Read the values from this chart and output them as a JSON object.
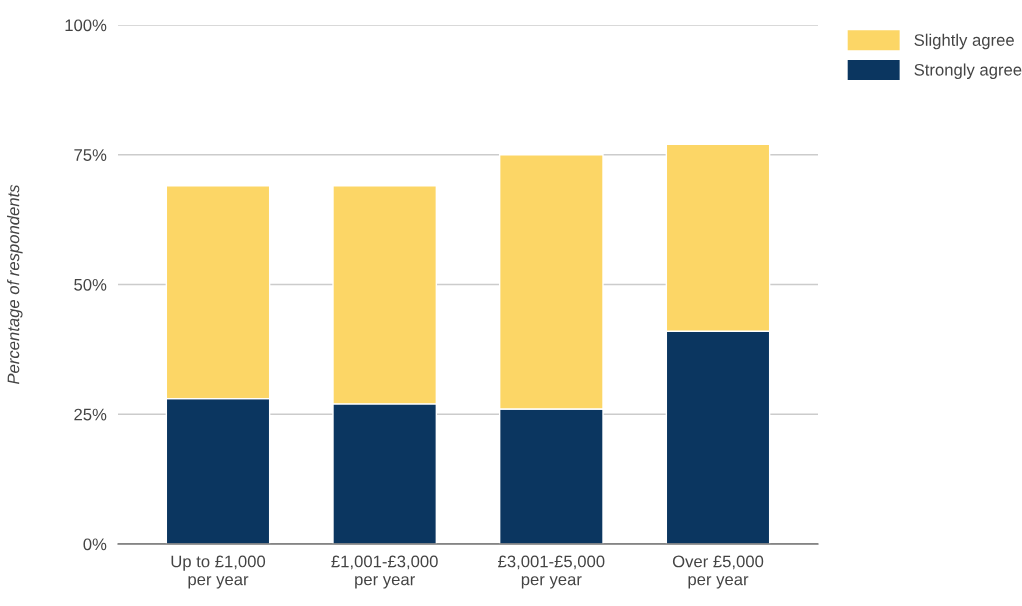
{
  "chart_data": {
    "type": "bar",
    "stacked": true,
    "ylabel": "Percentage of respondents",
    "categories": [
      "Up to £1,000\nper year",
      "£1,001-£3,000\nper year",
      "£3,001-£5,000\nper year",
      "Over £5,000\nper year"
    ],
    "series": [
      {
        "name": "Strongly agree",
        "color": "#0b3660",
        "values": [
          28,
          27,
          26,
          41
        ]
      },
      {
        "name": "Slightly agree",
        "color": "#fcd666",
        "values": [
          41,
          42,
          49,
          36
        ]
      }
    ],
    "ylim": [
      0,
      100
    ],
    "yticks": [
      {
        "value": 0,
        "label": "0%"
      },
      {
        "value": 25,
        "label": "25%"
      },
      {
        "value": 50,
        "label": "50%"
      },
      {
        "value": 75,
        "label": "75%"
      },
      {
        "value": 100,
        "label": "100%"
      }
    ],
    "grid": "y",
    "legend": "top right"
  }
}
